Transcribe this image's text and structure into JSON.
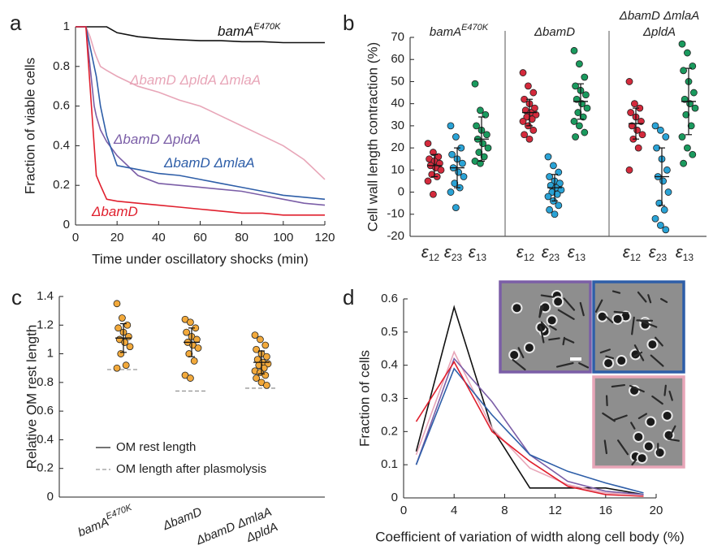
{
  "chart_data": [
    {
      "type": "line",
      "panel_label": "a",
      "x_label": "Time under oscillatory shocks (min)",
      "y_label": "Fraction of viable cells",
      "xlim": [
        0,
        120
      ],
      "ylim": [
        0,
        1
      ],
      "xticks": [
        0,
        20,
        40,
        60,
        80,
        100,
        120
      ],
      "yticks": [
        0,
        0.2,
        0.4,
        0.6,
        0.8,
        1
      ],
      "x": [
        0,
        5,
        7,
        9,
        10,
        12,
        15,
        20,
        30,
        40,
        50,
        60,
        70,
        80,
        90,
        100,
        110,
        120
      ],
      "series": [
        {
          "name": "bamA",
          "name_sup": "E470K",
          "color": "#111111",
          "values": [
            1,
            1,
            1,
            1,
            1,
            1,
            1,
            0.97,
            0.95,
            0.94,
            0.935,
            0.93,
            0.93,
            0.925,
            0.925,
            0.92,
            0.92,
            0.92
          ]
        },
        {
          "name": "ΔbamD ΔpldA ΔmlaA",
          "color": "#e8a6b8",
          "values": [
            1,
            1,
            0.95,
            0.88,
            0.85,
            0.8,
            0.78,
            0.75,
            0.7,
            0.67,
            0.63,
            0.6,
            0.55,
            0.5,
            0.45,
            0.4,
            0.33,
            0.23
          ]
        },
        {
          "name": "ΔbamD ΔpldA",
          "color": "#7b5ea7",
          "values": [
            1,
            1,
            0.8,
            0.6,
            0.55,
            0.48,
            0.42,
            0.35,
            0.25,
            0.21,
            0.2,
            0.19,
            0.18,
            0.17,
            0.15,
            0.13,
            0.11,
            0.1
          ]
        },
        {
          "name": "ΔbamD ΔmlaA",
          "color": "#2e5ea8",
          "values": [
            1,
            1,
            0.9,
            0.8,
            0.75,
            0.6,
            0.45,
            0.3,
            0.28,
            0.26,
            0.25,
            0.23,
            0.21,
            0.19,
            0.17,
            0.15,
            0.14,
            0.13
          ]
        },
        {
          "name": "ΔbamD",
          "color": "#e0202e",
          "values": [
            1,
            1,
            0.7,
            0.4,
            0.25,
            0.2,
            0.13,
            0.12,
            0.11,
            0.1,
            0.09,
            0.08,
            0.07,
            0.06,
            0.06,
            0.05,
            0.05,
            0.05
          ]
        }
      ]
    },
    {
      "type": "strip",
      "panel_label": "b",
      "y_label": "Cell wall length contraction (%)",
      "ylim": [
        -20,
        70
      ],
      "yticks": [
        -20,
        -10,
        0,
        10,
        20,
        30,
        40,
        50,
        60,
        70
      ],
      "symbol": "ε",
      "categories": [
        "12",
        "23",
        "13"
      ],
      "colors": [
        "#d42a3c",
        "#2aa3d6",
        "#1a9a5e"
      ],
      "groups": [
        {
          "label": {
            "lines": [
              "bamA"
            ],
            "sup": "E470K"
          },
          "series": [
            {
              "mean": 12,
              "sd": 5,
              "values": [
                22,
                18,
                16,
                15,
                14,
                13,
                12,
                11,
                10,
                8,
                7,
                5,
                -1
              ]
            },
            {
              "mean": 11,
              "sd": 9,
              "values": [
                30,
                25,
                20,
                17,
                15,
                13,
                11,
                9,
                7,
                4,
                2,
                0,
                -7
              ]
            },
            {
              "mean": 24,
              "sd": 10,
              "values": [
                49,
                37,
                35,
                30,
                28,
                26,
                24,
                22,
                20,
                18,
                16,
                14,
                13
              ]
            }
          ]
        },
        {
          "label": {
            "lines": [
              "ΔbamD"
            ]
          },
          "series": [
            {
              "mean": 36,
              "sd": 6,
              "values": [
                54,
                48,
                45,
                42,
                40,
                38,
                37,
                36,
                35,
                34,
                33,
                32,
                30,
                28,
                26,
                24
              ]
            },
            {
              "mean": 2,
              "sd": 6,
              "values": [
                16,
                12,
                9,
                7,
                5,
                4,
                3,
                2,
                1,
                0,
                -1,
                -2,
                -4,
                -6,
                -8,
                -10
              ]
            },
            {
              "mean": 41,
              "sd": 8,
              "values": [
                64,
                58,
                52,
                48,
                46,
                44,
                42,
                40,
                38,
                36,
                34,
                32,
                30,
                27,
                25
              ]
            }
          ]
        },
        {
          "label": {
            "lines": [
              "ΔbamD ΔmlaA",
              "ΔpldA"
            ]
          },
          "series": [
            {
              "mean": 31,
              "sd": 7,
              "values": [
                50,
                40,
                38,
                36,
                34,
                32,
                30,
                28,
                26,
                24,
                20,
                10
              ]
            },
            {
              "mean": 7,
              "sd": 13,
              "values": [
                30,
                28,
                25,
                20,
                15,
                10,
                7,
                5,
                0,
                -5,
                -8,
                -12,
                -15,
                -17
              ]
            },
            {
              "mean": 41,
              "sd": 15,
              "values": [
                67,
                63,
                57,
                55,
                50,
                45,
                42,
                40,
                38,
                35,
                30,
                25,
                20,
                17,
                13
              ]
            }
          ]
        }
      ]
    },
    {
      "type": "strip",
      "panel_label": "c",
      "y_label": "Relative OM rest length",
      "ylim": [
        0,
        1.4
      ],
      "yticks": [
        0,
        0.2,
        0.4,
        0.6,
        0.8,
        1,
        1.2,
        1.4
      ],
      "color": "#f2a93b",
      "legend": [
        "OM rest length",
        "OM length after plasmolysis"
      ],
      "categories": [
        {
          "lines": [
            "bamA"
          ],
          "sup": "E470K"
        },
        {
          "lines": [
            "ΔbamD"
          ]
        },
        {
          "lines": [
            "ΔbamD ΔmlaA",
            "ΔpldA"
          ]
        }
      ],
      "series": [
        {
          "mean": 1.11,
          "sd": 0.1,
          "plasmolysis": 0.89,
          "values": [
            1.35,
            1.25,
            1.2,
            1.18,
            1.15,
            1.12,
            1.1,
            1.08,
            1.05,
            1.0,
            0.92,
            0.9
          ]
        },
        {
          "mean": 1.08,
          "sd": 0.1,
          "plasmolysis": 0.74,
          "values": [
            1.24,
            1.22,
            1.18,
            1.15,
            1.12,
            1.1,
            1.08,
            1.06,
            1.04,
            1.0,
            0.95,
            0.85,
            0.83
          ]
        },
        {
          "mean": 0.94,
          "sd": 0.08,
          "plasmolysis": 0.76,
          "values": [
            1.13,
            1.1,
            1.06,
            1.03,
            1.0,
            0.98,
            0.96,
            0.94,
            0.93,
            0.92,
            0.9,
            0.88,
            0.87,
            0.85,
            0.83,
            0.8,
            0.78
          ]
        }
      ]
    },
    {
      "type": "line",
      "panel_label": "d",
      "x_label": "Coefficient of variation of width along cell body (%)",
      "y_label": "Fraction of cells",
      "xlim": [
        0,
        20
      ],
      "ylim": [
        0,
        0.6
      ],
      "xticks": [
        0,
        4,
        8,
        12,
        16,
        20
      ],
      "yticks": [
        0,
        0.1,
        0.2,
        0.3,
        0.4,
        0.5,
        0.6
      ],
      "x": [
        1,
        4,
        7,
        10,
        13,
        16,
        19
      ],
      "series": [
        {
          "color": "#111111",
          "values": [
            0.14,
            0.575,
            0.21,
            0.03,
            0.03,
            0.03,
            0.01
          ]
        },
        {
          "color": "#e8a6b8",
          "values": [
            0.13,
            0.44,
            0.21,
            0.09,
            0.04,
            0.015,
            0.01
          ]
        },
        {
          "color": "#7b5ea7",
          "values": [
            0.1,
            0.42,
            0.29,
            0.13,
            0.05,
            0.02,
            0.01
          ]
        },
        {
          "color": "#2e5ea8",
          "values": [
            0.1,
            0.39,
            0.25,
            0.13,
            0.08,
            0.045,
            0.015
          ]
        },
        {
          "color": "#e0202e",
          "values": [
            0.23,
            0.41,
            0.2,
            0.11,
            0.035,
            0.01,
            0.005
          ]
        }
      ]
    }
  ]
}
